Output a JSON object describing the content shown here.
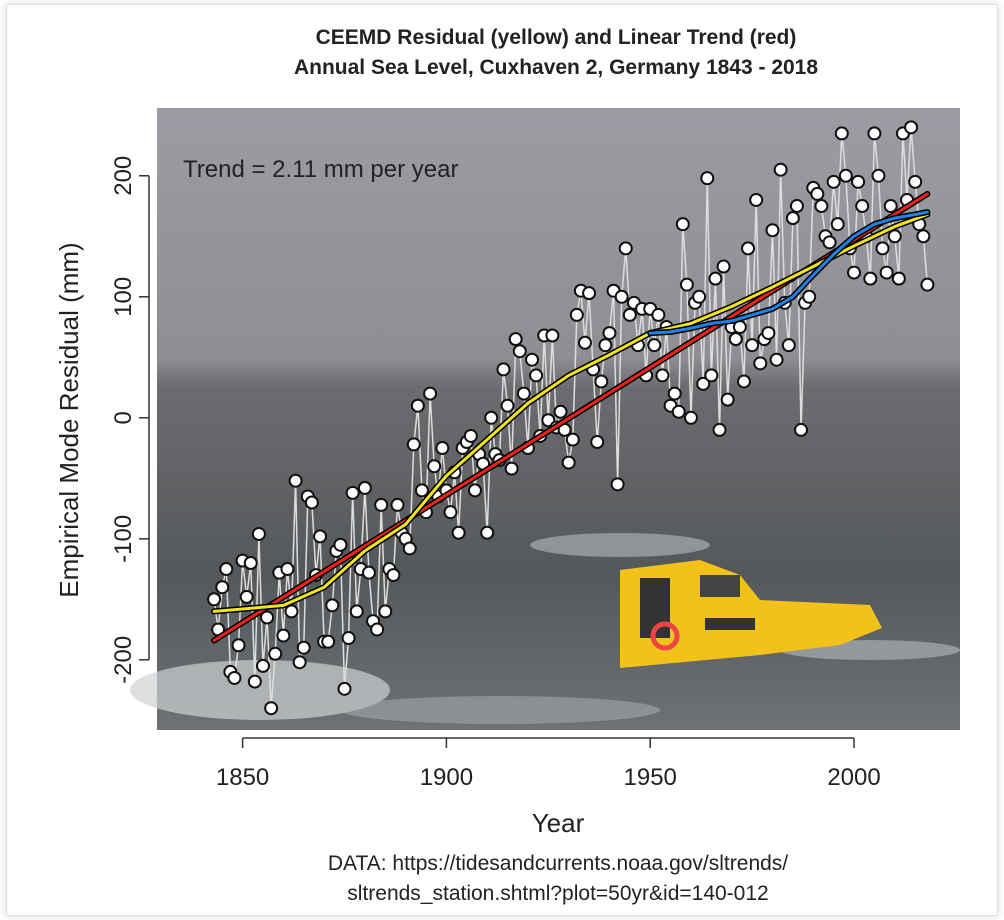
{
  "chart_data": {
    "type": "line",
    "title": "CEEMD Residual (yellow) and Linear Trend (red)",
    "subtitle": "Annual Sea Level, Cuxhaven 2, Germany 1843 - 2018",
    "xlabel": "Year",
    "ylabel": "Empirical Mode Residual (mm)",
    "annotation": "Trend = 2.11 mm per year",
    "source": [
      "DATA: https://tidesandcurrents.noaa.gov/sltrends/",
      "sltrends_station.shtml?plot=50yr&id=140-012"
    ],
    "xlim": [
      1829,
      2026
    ],
    "ylim": [
      -258,
      256
    ],
    "xticks": [
      1850,
      1900,
      1950,
      2000
    ],
    "yticks": [
      -200,
      -100,
      0,
      100,
      200
    ],
    "series": [
      {
        "color": "#ffffff",
        "line_color": "#dddddd",
        "markers": true,
        "x": [
          1843,
          1844,
          1845,
          1846,
          1847,
          1848,
          1849,
          1850,
          1851,
          1852,
          1853,
          1854,
          1855,
          1856,
          1857,
          1858,
          1859,
          1860,
          1861,
          1862,
          1863,
          1864,
          1865,
          1866,
          1867,
          1868,
          1869,
          1870,
          1871,
          1872,
          1873,
          1874,
          1875,
          1876,
          1877,
          1878,
          1879,
          1880,
          1881,
          1882,
          1883,
          1884,
          1885,
          1886,
          1887,
          1888,
          1889,
          1890,
          1891,
          1892,
          1893,
          1894,
          1895,
          1896,
          1897,
          1898,
          1899,
          1900,
          1901,
          1902,
          1903,
          1904,
          1905,
          1906,
          1907,
          1908,
          1909,
          1910,
          1911,
          1912,
          1913,
          1914,
          1915,
          1916,
          1917,
          1918,
          1919,
          1920,
          1921,
          1922,
          1923,
          1924,
          1925,
          1926,
          1927,
          1928,
          1929,
          1930,
          1931,
          1932,
          1933,
          1934,
          1935,
          1936,
          1937,
          1938,
          1939,
          1940,
          1941,
          1942,
          1943,
          1944,
          1945,
          1946,
          1947,
          1948,
          1949,
          1950,
          1951,
          1952,
          1953,
          1954,
          1955,
          1956,
          1957,
          1958,
          1959,
          1960,
          1961,
          1962,
          1963,
          1964,
          1965,
          1966,
          1967,
          1968,
          1969,
          1970,
          1971,
          1972,
          1973,
          1974,
          1975,
          1976,
          1977,
          1978,
          1979,
          1980,
          1981,
          1982,
          1983,
          1984,
          1985,
          1986,
          1987,
          1988,
          1989,
          1990,
          1991,
          1992,
          1993,
          1994,
          1995,
          1996,
          1997,
          1998,
          1999,
          2000,
          2001,
          2002,
          2003,
          2004,
          2005,
          2006,
          2007,
          2008,
          2009,
          2010,
          2011,
          2012,
          2013,
          2014,
          2015,
          2016,
          2017,
          2018
        ],
        "values": [
          -150,
          -175,
          -140,
          -125,
          -210,
          -215,
          -188,
          -118,
          -148,
          -120,
          -218,
          -96,
          -205,
          -165,
          -240,
          -195,
          -128,
          -180,
          -125,
          -160,
          -52,
          -202,
          -190,
          -65,
          -70,
          -130,
          -98,
          -185,
          -185,
          -155,
          -110,
          -105,
          -224,
          -182,
          -62,
          -160,
          -125,
          -58,
          -128,
          -168,
          -175,
          -72,
          -160,
          -125,
          -130,
          -72,
          -95,
          -100,
          -108,
          -22,
          10,
          -60,
          -78,
          20,
          -40,
          -65,
          -25,
          -60,
          -78,
          -45,
          -95,
          -25,
          -20,
          -15,
          -60,
          -30,
          -38,
          -95,
          0,
          -30,
          -35,
          40,
          10,
          -42,
          65,
          55,
          20,
          -25,
          48,
          35,
          -15,
          68,
          -2,
          68,
          -8,
          5,
          -10,
          -37,
          -18,
          85,
          105,
          62,
          103,
          40,
          -20,
          30,
          60,
          70,
          105,
          -55,
          100,
          140,
          85,
          95,
          60,
          90,
          35,
          90,
          60,
          85,
          35,
          75,
          10,
          20,
          5,
          160,
          110,
          0,
          95,
          100,
          28,
          198,
          35,
          115,
          -10,
          125,
          15,
          75,
          65,
          75,
          30,
          140,
          60,
          180,
          45,
          65,
          70,
          155,
          48,
          205,
          95,
          60,
          165,
          175,
          -10,
          95,
          100,
          190,
          185,
          175,
          150,
          145,
          195,
          160,
          235,
          200,
          140,
          120,
          195,
          175,
          150,
          115,
          235,
          200,
          140,
          120,
          175,
          150,
          115,
          235,
          180,
          240,
          195,
          160,
          150,
          110
        ]
      },
      {
        "color": "#e8231b",
        "width": 3,
        "x": [
          1843,
          2018
        ],
        "values": [
          -184,
          185
        ]
      },
      {
        "color": "#f2e41c",
        "width": 3,
        "x": [
          1843,
          1850,
          1860,
          1870,
          1880,
          1890,
          1900,
          1910,
          1920,
          1930,
          1940,
          1950,
          1960,
          1970,
          1980,
          1990,
          2000,
          2010,
          2018
        ],
        "values": [
          -160,
          -158,
          -155,
          -140,
          -110,
          -88,
          -48,
          -18,
          12,
          35,
          52,
          70,
          78,
          92,
          108,
          125,
          142,
          158,
          168
        ]
      },
      {
        "color": "#1f82e6",
        "width": 3,
        "x": [
          1950,
          1955,
          1960,
          1965,
          1970,
          1975,
          1980,
          1985,
          1990,
          1995,
          2000,
          2005,
          2010,
          2015,
          2018
        ],
        "values": [
          70,
          71,
          74,
          78,
          80,
          85,
          90,
          100,
          118,
          135,
          150,
          160,
          165,
          168,
          170
        ]
      }
    ]
  }
}
